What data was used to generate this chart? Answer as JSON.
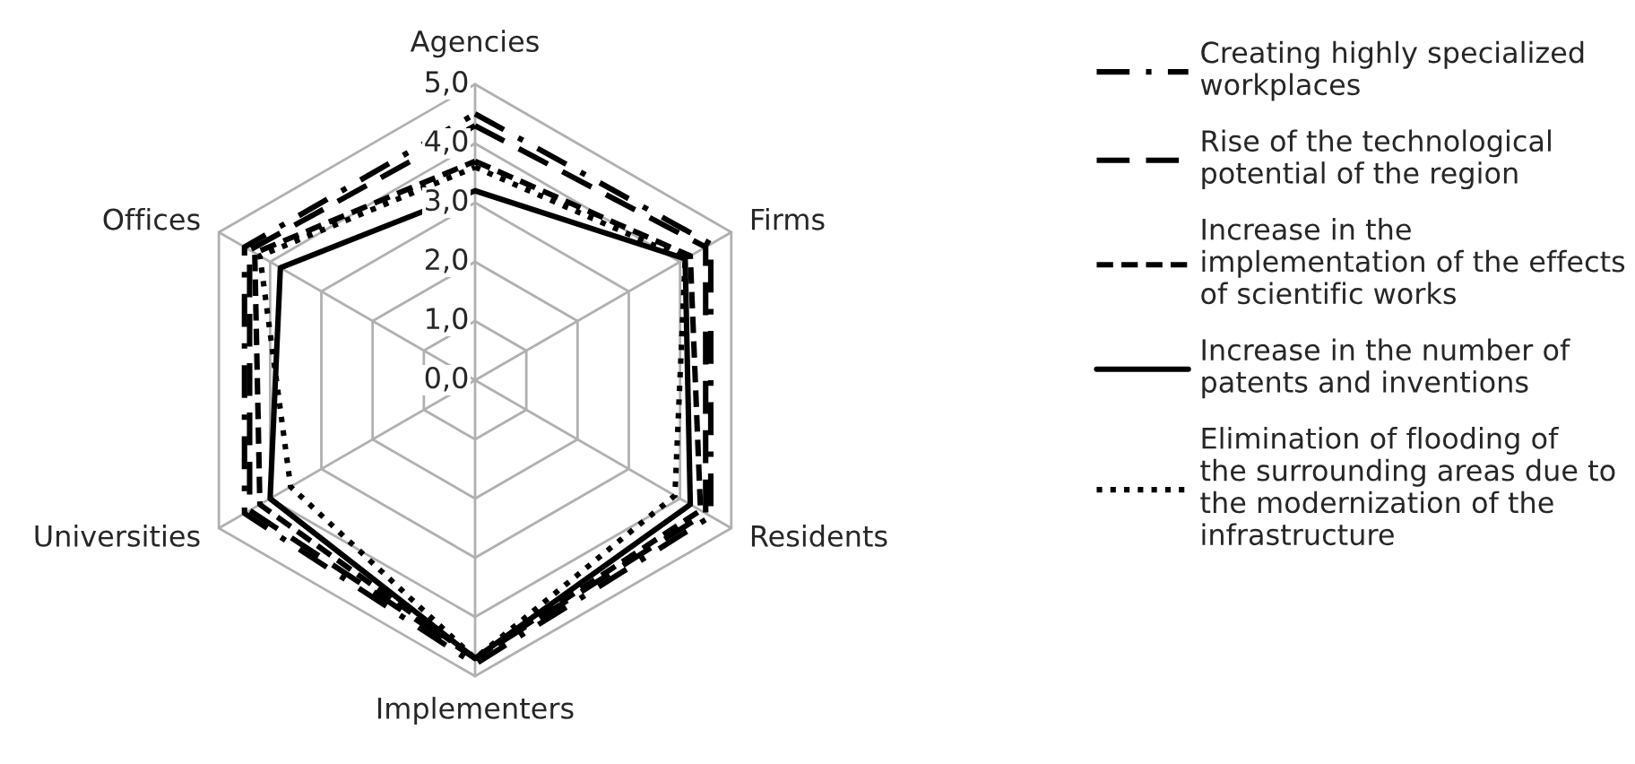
{
  "chart_data": {
    "type": "radar",
    "categories": [
      "Agencies",
      "Firms",
      "Residents",
      "Implementers",
      "Universities",
      "Offices"
    ],
    "ylim": [
      0,
      5
    ],
    "yticks": [
      {
        "value": 0,
        "label": "0,0"
      },
      {
        "value": 1,
        "label": "1,0"
      },
      {
        "value": 2,
        "label": "2,0"
      },
      {
        "value": 3,
        "label": "3,0"
      },
      {
        "value": 4,
        "label": "4,0"
      },
      {
        "value": 5,
        "label": "5,0"
      }
    ],
    "grid": true,
    "legend": "right",
    "series": [
      {
        "name": "Creating highly specialized workplaces",
        "color": "#000000",
        "line_style": "dashdot",
        "values": [
          4.5,
          4.6,
          4.6,
          4.8,
          4.5,
          4.5
        ]
      },
      {
        "name": "Rise of the technological potential of the region",
        "color": "#000000",
        "line_style": "longdash",
        "values": [
          4.3,
          4.5,
          4.5,
          4.7,
          4.4,
          4.4
        ]
      },
      {
        "name": "Increase in the implementation of the effects of scientific works",
        "color": "#000000",
        "line_style": "dashed",
        "values": [
          3.7,
          4.2,
          4.4,
          4.7,
          4.2,
          4.3
        ]
      },
      {
        "name": "Increase in the number of patents and inventions",
        "color": "#000000",
        "line_style": "solid",
        "values": [
          3.2,
          4.1,
          4.2,
          4.7,
          4.0,
          3.8
        ]
      },
      {
        "name": "Elimination of flooding of the surrounding areas due to the modernization of the infrastructure",
        "color": "#000000",
        "line_style": "dotted",
        "values": [
          3.6,
          4.1,
          3.9,
          4.7,
          3.6,
          4.2
        ]
      }
    ]
  }
}
